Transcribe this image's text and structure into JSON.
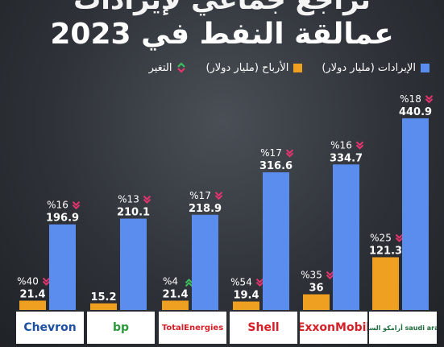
{
  "title": {
    "line1": "تراجع جماعي لإيرادات",
    "line2": "عمالقة النفط في 2023"
  },
  "legend": {
    "revenue": "الإيرادات (مليار دولار)",
    "profit": "الأرباح (مليار دولار)",
    "change": "التغير"
  },
  "colors": {
    "revenue": "#5b8dee",
    "profit": "#f0a020",
    "down": "#e8336f",
    "up": "#3fbf60",
    "text": "#ffffff"
  },
  "chart_data": {
    "type": "bar",
    "categories": [
      "Chevron",
      "bp",
      "TotalEnergies",
      "Shell",
      "ExxonMobil",
      "أرامكو السعودية saudi aramco"
    ],
    "series": [
      {
        "name": "الأرباح (مليار دولار)",
        "values": [
          21.4,
          15.2,
          21.4,
          19.4,
          36,
          121.3
        ],
        "labels": [
          "21.4",
          "15.2",
          "21.4",
          "19.4",
          "36",
          "121.3"
        ],
        "change": [
          "%40",
          "",
          "%4",
          "%54",
          "%35",
          "%25"
        ],
        "direction": [
          "down",
          "",
          "up",
          "down",
          "down",
          "down"
        ]
      },
      {
        "name": "الإيرادات (مليار دولار)",
        "values": [
          196.9,
          210.1,
          218.9,
          316.6,
          334.7,
          440.9
        ],
        "labels": [
          "196.9",
          "210.1",
          "218.9",
          "316.6",
          "334.7",
          "440.9"
        ],
        "change": [
          "%16",
          "%13",
          "%17",
          "%17",
          "%16",
          "%18"
        ],
        "direction": [
          "down",
          "down",
          "down",
          "down",
          "down",
          "down"
        ]
      }
    ],
    "xlabel": "",
    "ylabel": "",
    "ylim": [
      0,
      450
    ],
    "grid": false,
    "legend_position": "top"
  },
  "logos": [
    {
      "text": "Chevron",
      "color": "#1d4fa3"
    },
    {
      "text": "bp",
      "color": "#2a9a3a"
    },
    {
      "text": "TotalEnergies",
      "color": "#d62027"
    },
    {
      "text": "Shell",
      "color": "#d62027"
    },
    {
      "text": "ExxonMobil",
      "color": "#d62027"
    },
    {
      "text": "أرامكو السعودية saudi aramco",
      "color": "#1b6b3a"
    }
  ]
}
